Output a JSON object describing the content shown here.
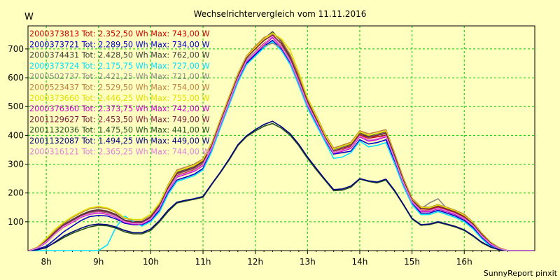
{
  "chart_data": {
    "type": "line",
    "title": "Wechselrichtervergleich vom 11.11.2016",
    "ylabel": "W",
    "footer": "SunnyReport pinxit",
    "ylim": [
      0,
      780
    ],
    "xlim": [
      7.65,
      17.35
    ],
    "yticks": [
      100,
      200,
      300,
      400,
      500,
      600,
      700
    ],
    "xticks": [
      {
        "label": "8h",
        "v": 8
      },
      {
        "label": "9h",
        "v": 9
      },
      {
        "label": "10h",
        "v": 10
      },
      {
        "label": "11h",
        "v": 11
      },
      {
        "label": "12h",
        "v": 12
      },
      {
        "label": "13h",
        "v": 13
      },
      {
        "label": "14h",
        "v": 14
      },
      {
        "label": "15h",
        "v": 15
      },
      {
        "label": "16h",
        "v": 16
      }
    ],
    "grid": true,
    "legend_position": "top-left",
    "x": [
      7.67,
      7.83,
      8.0,
      8.17,
      8.33,
      8.5,
      8.67,
      8.83,
      9.0,
      9.17,
      9.33,
      9.5,
      9.67,
      9.83,
      10.0,
      10.17,
      10.33,
      10.5,
      10.67,
      10.83,
      11.0,
      11.17,
      11.33,
      11.5,
      11.67,
      11.83,
      12.0,
      12.17,
      12.33,
      12.5,
      12.67,
      12.83,
      13.0,
      13.17,
      13.33,
      13.5,
      13.67,
      13.83,
      14.0,
      14.17,
      14.33,
      14.5,
      14.67,
      14.83,
      15.0,
      15.17,
      15.33,
      15.5,
      15.67,
      15.83,
      16.0,
      16.17,
      16.33,
      16.5,
      16.67,
      16.83,
      17.0,
      17.17,
      17.33
    ],
    "series": [
      {
        "name": "2000373813",
        "label": "2000373813 Tot: 2.352,50 Wh Max: 743,00 W",
        "color": "#cc0000",
        "values": [
          0,
          10,
          30,
          60,
          85,
          100,
          120,
          130,
          135,
          130,
          120,
          100,
          95,
          95,
          110,
          150,
          210,
          260,
          270,
          280,
          300,
          360,
          440,
          520,
          600,
          660,
          690,
          720,
          740,
          710,
          660,
          590,
          510,
          450,
          390,
          340,
          350,
          360,
          400,
          390,
          395,
          400,
          320,
          240,
          170,
          140,
          140,
          150,
          140,
          130,
          115,
          90,
          55,
          25,
          8,
          0,
          0,
          0,
          0
        ]
      },
      {
        "name": "2000373721",
        "label": "2000373721 Tot: 2.289,50 Wh Max: 734,00 W",
        "color": "#0000cc",
        "values": [
          0,
          5,
          15,
          40,
          65,
          85,
          105,
          118,
          122,
          120,
          110,
          95,
          90,
          90,
          105,
          140,
          200,
          245,
          255,
          265,
          285,
          350,
          430,
          510,
          590,
          650,
          680,
          710,
          730,
          700,
          650,
          580,
          500,
          440,
          385,
          335,
          340,
          345,
          385,
          370,
          375,
          385,
          310,
          230,
          165,
          130,
          130,
          140,
          130,
          120,
          105,
          80,
          45,
          18,
          5,
          0,
          0,
          0,
          0
        ]
      },
      {
        "name": "2000374431",
        "label": "2000374431 Tot: 2.428,50 Wh Max: 762,00 W",
        "color": "#404040",
        "values": [
          0,
          10,
          35,
          65,
          90,
          108,
          125,
          137,
          142,
          137,
          126,
          106,
          100,
          100,
          118,
          158,
          220,
          272,
          282,
          292,
          312,
          370,
          450,
          530,
          610,
          670,
          705,
          735,
          760,
          725,
          675,
          605,
          525,
          462,
          400,
          350,
          360,
          370,
          410,
          398,
          405,
          412,
          330,
          248,
          176,
          148,
          146,
          156,
          146,
          136,
          120,
          94,
          58,
          28,
          9,
          0,
          0,
          0,
          0
        ]
      },
      {
        "name": "2000373724",
        "label": "2000373724 Tot: 2.175,75 Wh Max: 727,00 W",
        "color": "#00e0ff",
        "values": [
          0,
          0,
          0,
          0,
          0,
          0,
          0,
          0,
          0,
          20,
          80,
          120,
          100,
          85,
          100,
          135,
          195,
          240,
          250,
          260,
          280,
          345,
          425,
          505,
          585,
          645,
          675,
          705,
          725,
          695,
          645,
          575,
          495,
          435,
          380,
          320,
          325,
          340,
          380,
          360,
          365,
          375,
          300,
          225,
          160,
          125,
          125,
          135,
          125,
          115,
          100,
          75,
          42,
          15,
          4,
          0,
          0,
          0,
          0
        ]
      },
      {
        "name": "2000502737",
        "label": "2000502737 Tot: 2.421,25 Wh Max: 721,00 W",
        "color": "#888888",
        "values": [
          0,
          8,
          30,
          60,
          85,
          102,
          120,
          132,
          138,
          133,
          122,
          102,
          96,
          96,
          114,
          152,
          215,
          265,
          275,
          285,
          305,
          362,
          442,
          522,
          602,
          662,
          690,
          710,
          720,
          705,
          665,
          600,
          520,
          458,
          398,
          348,
          356,
          365,
          405,
          392,
          400,
          405,
          325,
          245,
          174,
          145,
          165,
          180,
          145,
          135,
          118,
          92,
          56,
          27,
          8,
          0,
          0,
          0,
          0
        ]
      },
      {
        "name": "2000523437",
        "label": "2000523437 Tot: 2.529,50 Wh Max: 754,00 W",
        "color": "#c08040",
        "values": [
          0,
          12,
          40,
          70,
          95,
          115,
          132,
          145,
          150,
          145,
          133,
          112,
          106,
          106,
          124,
          165,
          228,
          280,
          290,
          300,
          318,
          375,
          455,
          535,
          615,
          675,
          710,
          740,
          752,
          730,
          680,
          610,
          530,
          468,
          406,
          356,
          366,
          376,
          416,
          405,
          412,
          420,
          336,
          254,
          182,
          152,
          150,
          160,
          150,
          140,
          126,
          98,
          62,
          30,
          10,
          0,
          0,
          0,
          0
        ]
      },
      {
        "name": "2000373660",
        "label": "2000373660 Tot: 2.446,25 Wh Max: 755,00 W",
        "color": "#e0e000",
        "values": [
          0,
          12,
          42,
          74,
          98,
          118,
          135,
          148,
          154,
          148,
          136,
          114,
          108,
          108,
          126,
          167,
          225,
          275,
          285,
          295,
          315,
          372,
          452,
          532,
          612,
          672,
          705,
          735,
          755,
          735,
          695,
          620,
          530,
          465,
          403,
          352,
          362,
          372,
          412,
          400,
          407,
          415,
          332,
          250,
          178,
          150,
          148,
          158,
          148,
          138,
          122,
          96,
          60,
          29,
          9,
          0,
          0,
          0,
          0
        ]
      },
      {
        "name": "2000376360",
        "label": "2000376360 Tot: 2.373,75 Wh Max: 742,00 W",
        "color": "#cc00cc",
        "values": [
          0,
          8,
          28,
          58,
          82,
          98,
          116,
          126,
          130,
          126,
          116,
          98,
          92,
          92,
          108,
          148,
          208,
          255,
          265,
          275,
          295,
          355,
          435,
          515,
          595,
          655,
          685,
          715,
          740,
          705,
          655,
          585,
          505,
          445,
          388,
          338,
          345,
          355,
          395,
          380,
          385,
          395,
          315,
          235,
          168,
          135,
          135,
          145,
          135,
          125,
          110,
          85,
          50,
          22,
          6,
          0,
          0,
          0,
          0
        ]
      },
      {
        "name": "2001129627",
        "label": "2001129627 Tot: 2.453,50 Wh Max: 749,00 W",
        "color": "#802040",
        "values": [
          0,
          10,
          33,
          63,
          88,
          105,
          122,
          134,
          140,
          135,
          124,
          104,
          98,
          98,
          116,
          155,
          218,
          268,
          278,
          288,
          308,
          366,
          446,
          526,
          606,
          668,
          700,
          730,
          748,
          718,
          668,
          598,
          518,
          456,
          395,
          345,
          355,
          365,
          405,
          394,
          400,
          408,
          328,
          246,
          175,
          146,
          144,
          154,
          144,
          134,
          118,
          92,
          57,
          27,
          8,
          0,
          0,
          0,
          0
        ]
      },
      {
        "name": "2001132036",
        "label": "2001132036 Tot: 1.475,50 Wh Max: 441,00 W",
        "color": "#205020",
        "values": [
          0,
          3,
          12,
          28,
          45,
          60,
          72,
          82,
          88,
          86,
          78,
          65,
          58,
          58,
          70,
          100,
          135,
          165,
          172,
          178,
          185,
          230,
          270,
          315,
          365,
          395,
          415,
          432,
          441,
          425,
          400,
          365,
          320,
          280,
          245,
          208,
          210,
          220,
          248,
          240,
          235,
          245,
          205,
          160,
          110,
          88,
          90,
          98,
          90,
          82,
          70,
          50,
          28,
          12,
          3,
          0,
          0,
          0,
          0
        ]
      },
      {
        "name": "2001132087",
        "label": "2001132087 Tot: 1.494,25 Wh Max: 449,00 W",
        "color": "#000080",
        "values": [
          0,
          3,
          10,
          30,
          50,
          65,
          78,
          88,
          92,
          90,
          82,
          70,
          62,
          62,
          75,
          105,
          140,
          168,
          175,
          180,
          188,
          232,
          272,
          318,
          368,
          398,
          420,
          438,
          449,
          430,
          405,
          370,
          325,
          285,
          248,
          212,
          214,
          224,
          250,
          242,
          238,
          248,
          208,
          162,
          112,
          90,
          92,
          100,
          92,
          84,
          72,
          52,
          30,
          13,
          3,
          0,
          0,
          0,
          0
        ]
      },
      {
        "name": "2000316121",
        "label": "2000316121 Tot: 2.365,25 Wh Max: 744,00 W",
        "color": "#e080e0",
        "values": [
          0,
          9,
          30,
          58,
          84,
          100,
          118,
          128,
          133,
          128,
          118,
          100,
          94,
          94,
          110,
          150,
          210,
          258,
          268,
          278,
          298,
          358,
          438,
          518,
          598,
          658,
          688,
          718,
          744,
          708,
          658,
          588,
          508,
          448,
          390,
          340,
          348,
          358,
          398,
          384,
          388,
          398,
          318,
          238,
          170,
          138,
          138,
          148,
          138,
          128,
          112,
          87,
          52,
          24,
          7,
          0,
          0,
          0,
          0
        ]
      }
    ]
  }
}
